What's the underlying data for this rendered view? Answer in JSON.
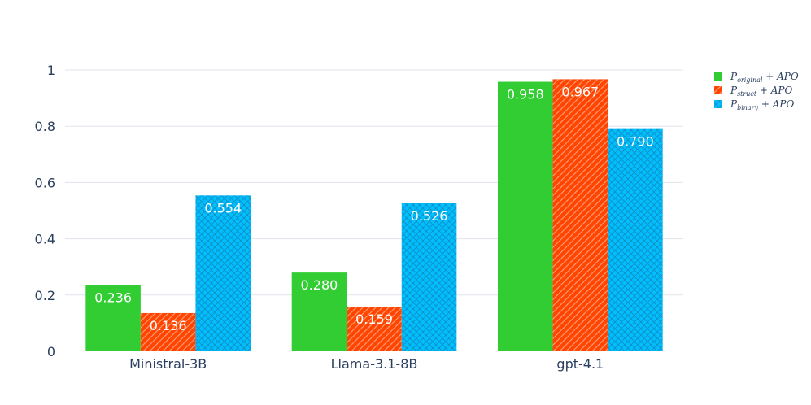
{
  "chart_data": {
    "type": "bar",
    "categories": [
      "Ministral-3B",
      "Llama-3.1-8B",
      "gpt-4.1"
    ],
    "ylim": [
      0,
      1
    ],
    "yticks": [
      "0",
      "0.2",
      "0.4",
      "0.6",
      "0.8",
      "1"
    ],
    "ytick_values": [
      0,
      0.2,
      0.4,
      0.6,
      0.8,
      1
    ],
    "grid": true,
    "legend_position": "top-right",
    "series": [
      {
        "name_main": "P",
        "name_sub": "original",
        "name_rest": " + APO",
        "color": "#32cd32",
        "pattern": "solid",
        "values": [
          0.236,
          0.28,
          0.958
        ],
        "labels": [
          "0.236",
          "0.280",
          "0.958"
        ]
      },
      {
        "name_main": "P",
        "name_sub": "struct",
        "name_rest": " + APO",
        "color": "#ff4500",
        "pattern": "diagonal-hatch",
        "values": [
          0.136,
          0.159,
          0.967
        ],
        "labels": [
          "0.136",
          "0.159",
          "0.967"
        ]
      },
      {
        "name_main": "P",
        "name_sub": "binary",
        "name_rest": " + APO",
        "color": "#00bfff",
        "pattern": "cross-hatch",
        "values": [
          0.554,
          0.526,
          0.79
        ],
        "labels": [
          "0.554",
          "0.526",
          "0.790"
        ]
      }
    ]
  }
}
